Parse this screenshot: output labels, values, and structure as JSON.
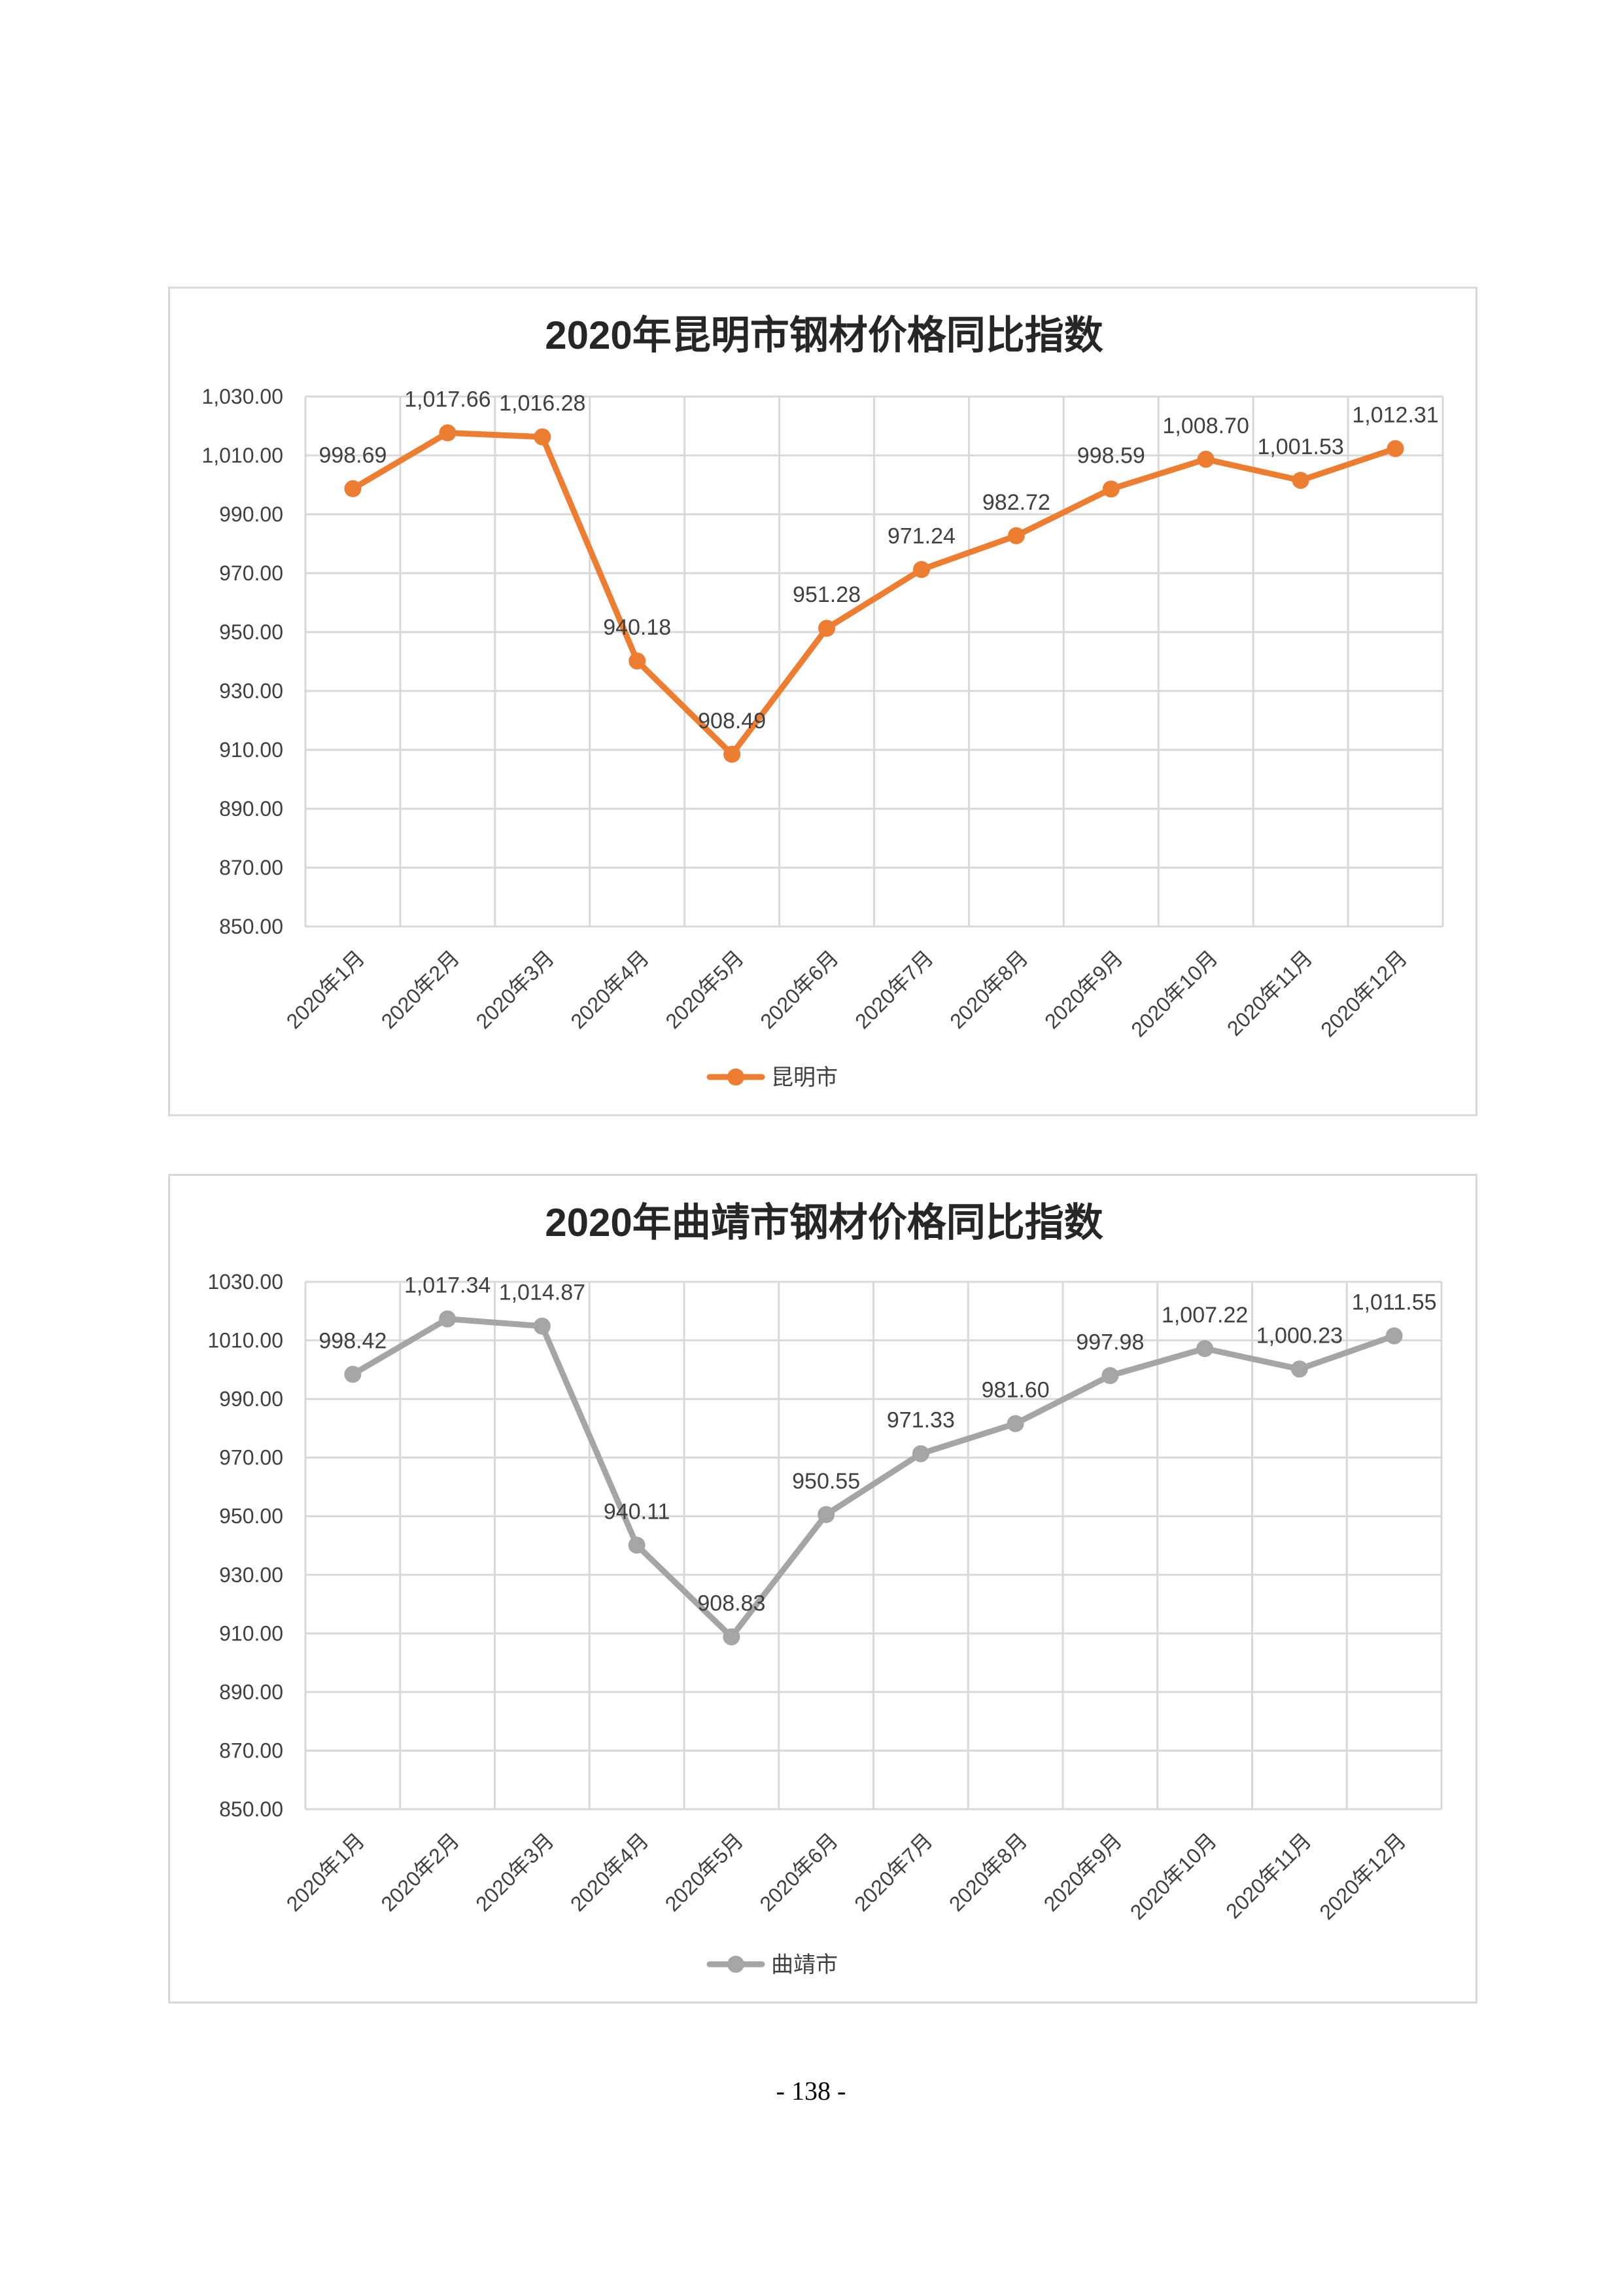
{
  "page": {
    "number": "- 138 -"
  },
  "chart_data": [
    {
      "type": "line",
      "title": "2020年昆明市钢材价格同比指数",
      "categories": [
        "2020年1月",
        "2020年2月",
        "2020年3月",
        "2020年4月",
        "2020年5月",
        "2020年6月",
        "2020年7月",
        "2020年8月",
        "2020年9月",
        "2020年10月",
        "2020年11月",
        "2020年12月"
      ],
      "series": [
        {
          "name": "昆明市",
          "color": "#ed7d31",
          "values": [
            998.69,
            1017.66,
            1016.28,
            940.18,
            908.49,
            951.28,
            971.24,
            982.72,
            998.59,
            1008.7,
            1001.53,
            1012.31
          ],
          "labels": [
            "998.69",
            "1,017.66",
            "1,016.28",
            "940.18",
            "908.49",
            "951.28",
            "971.24",
            "982.72",
            "998.59",
            "1,008.70",
            "1,001.53",
            "1,012.31"
          ]
        }
      ],
      "ylim": [
        850,
        1030
      ],
      "yticks": [
        850,
        870,
        890,
        910,
        930,
        950,
        970,
        990,
        1010,
        1030
      ],
      "ytick_labels": [
        "850.00",
        "870.00",
        "890.00",
        "910.00",
        "930.00",
        "950.00",
        "970.00",
        "990.00",
        "1,010.00",
        "1,030.00"
      ],
      "grid": true,
      "legend_position": "bottom",
      "xlabel": "",
      "ylabel": ""
    },
    {
      "type": "line",
      "title": "2020年曲靖市钢材价格同比指数",
      "categories": [
        "2020年1月",
        "2020年2月",
        "2020年3月",
        "2020年4月",
        "2020年5月",
        "2020年6月",
        "2020年7月",
        "2020年8月",
        "2020年9月",
        "2020年10月",
        "2020年11月",
        "2020年12月"
      ],
      "series": [
        {
          "name": "曲靖市",
          "color": "#a5a5a5",
          "values": [
            998.42,
            1017.34,
            1014.87,
            940.11,
            908.83,
            950.55,
            971.33,
            981.6,
            997.98,
            1007.22,
            1000.23,
            1011.55
          ],
          "labels": [
            "998.42",
            "1,017.34",
            "1,014.87",
            "940.11",
            "908.83",
            "950.55",
            "971.33",
            "981.60",
            "997.98",
            "1,007.22",
            "1,000.23",
            "1,011.55"
          ]
        }
      ],
      "ylim": [
        850,
        1030
      ],
      "yticks": [
        850,
        870,
        890,
        910,
        930,
        950,
        970,
        990,
        1010,
        1030
      ],
      "ytick_labels": [
        "850.00",
        "870.00",
        "890.00",
        "910.00",
        "930.00",
        "950.00",
        "970.00",
        "990.00",
        "1010.00",
        "1030.00"
      ],
      "grid": true,
      "legend_position": "bottom",
      "xlabel": "",
      "ylabel": ""
    }
  ]
}
